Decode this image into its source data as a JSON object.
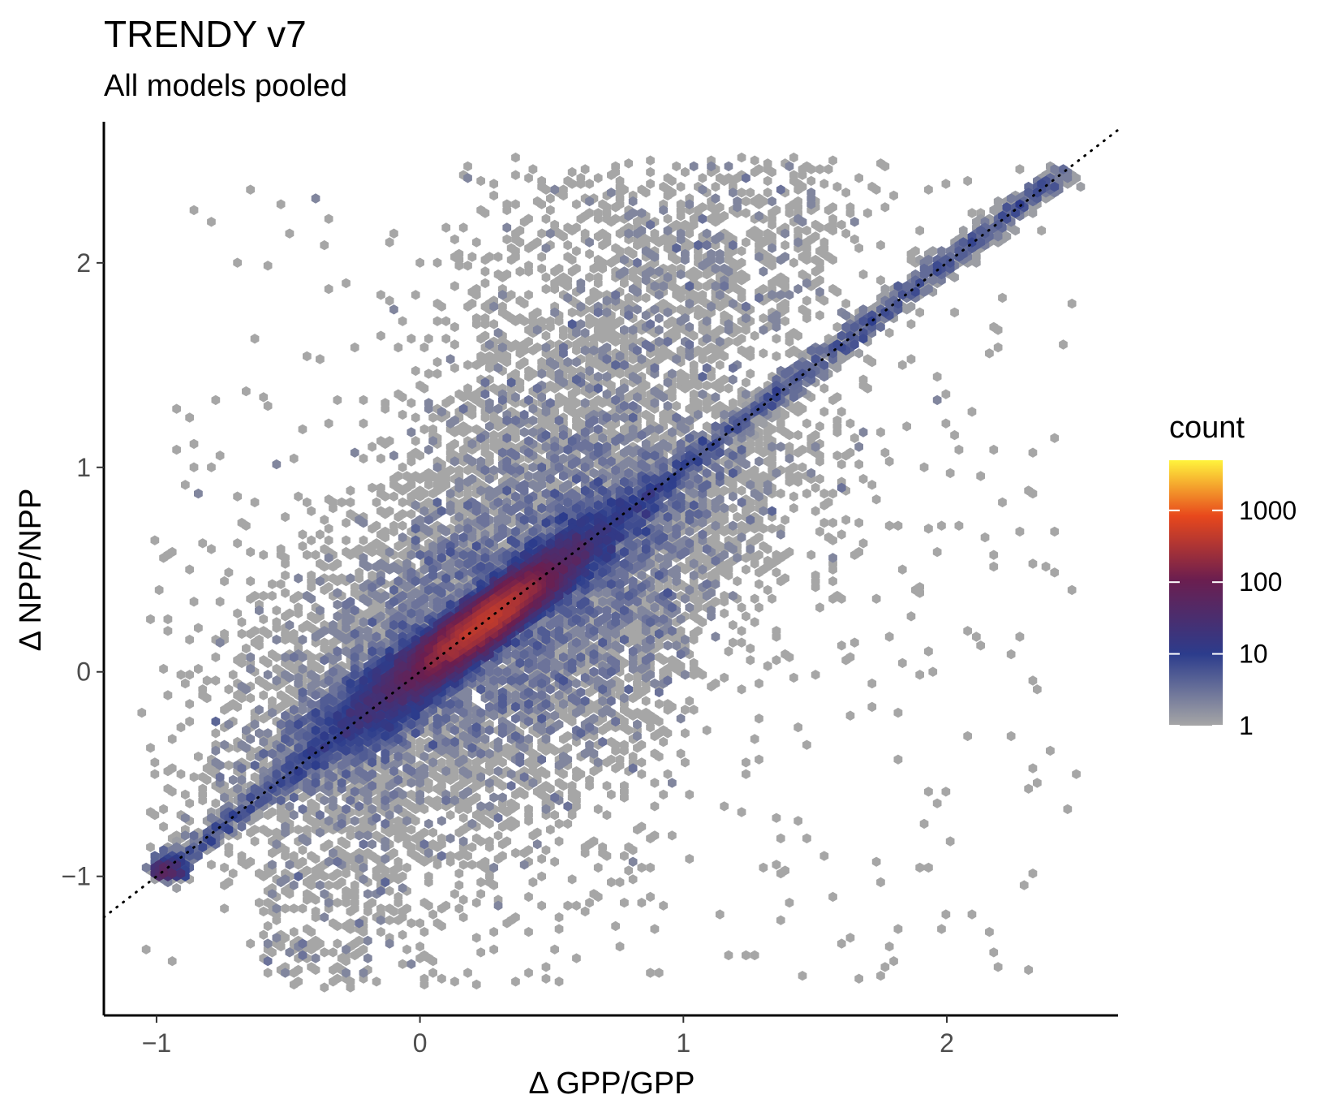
{
  "chart_data": {
    "type": "heatmap",
    "subtype": "hexbin",
    "title": "TRENDY v7",
    "subtitle": "All models pooled",
    "xlabel": "Δ GPP/GPP",
    "ylabel": "Δ NPP/NPP",
    "xlim": [
      -1.2,
      2.65
    ],
    "ylim": [
      -1.68,
      2.69
    ],
    "x_ticks": [
      -1,
      0,
      1,
      2
    ],
    "x_tick_labels": [
      "−1",
      "0",
      "1",
      "2"
    ],
    "y_ticks": [
      -1,
      0,
      1,
      2
    ],
    "y_tick_labels": [
      "−1",
      "0",
      "1",
      "2"
    ],
    "grid": false,
    "reference_line": {
      "style": "dotted",
      "slope": 1,
      "intercept": 0,
      "color": "#000000"
    },
    "fill_scale": {
      "name": "count",
      "scale": "log10",
      "range": [
        1,
        5000
      ],
      "breaks": [
        1,
        10,
        100,
        1000
      ],
      "break_labels": [
        "1",
        "10",
        "100",
        "1000"
      ],
      "colors": [
        "#a6a6a6",
        "#2c3c8c",
        "#6b1e4f",
        "#e8481c",
        "#fff33c"
      ]
    },
    "legend_position": "right",
    "dense_band": {
      "description_points": [
        {
          "x": -1.0,
          "y": -1.0,
          "count": 200
        },
        {
          "x": -0.5,
          "y": -0.5,
          "count": 30
        },
        {
          "x": -0.2,
          "y": -0.2,
          "count": 200
        },
        {
          "x": 0.0,
          "y": 0.0,
          "count": 600
        },
        {
          "x": 0.2,
          "y": 0.2,
          "count": 2500
        },
        {
          "x": 0.3,
          "y": 0.3,
          "count": 5000
        },
        {
          "x": 0.5,
          "y": 0.5,
          "count": 300
        },
        {
          "x": 0.8,
          "y": 0.8,
          "count": 40
        },
        {
          "x": 1.5,
          "y": 1.5,
          "count": 15
        },
        {
          "x": 2.4,
          "y": 2.45,
          "count": 10
        }
      ]
    }
  },
  "colors": {
    "axis": "#000000",
    "tick_label": "#4d4d4d",
    "low": "#a6a6a6",
    "mid_low": "#2c3c8c",
    "mid": "#6b1e4f",
    "mid_high": "#e8481c",
    "high": "#fff33c"
  }
}
